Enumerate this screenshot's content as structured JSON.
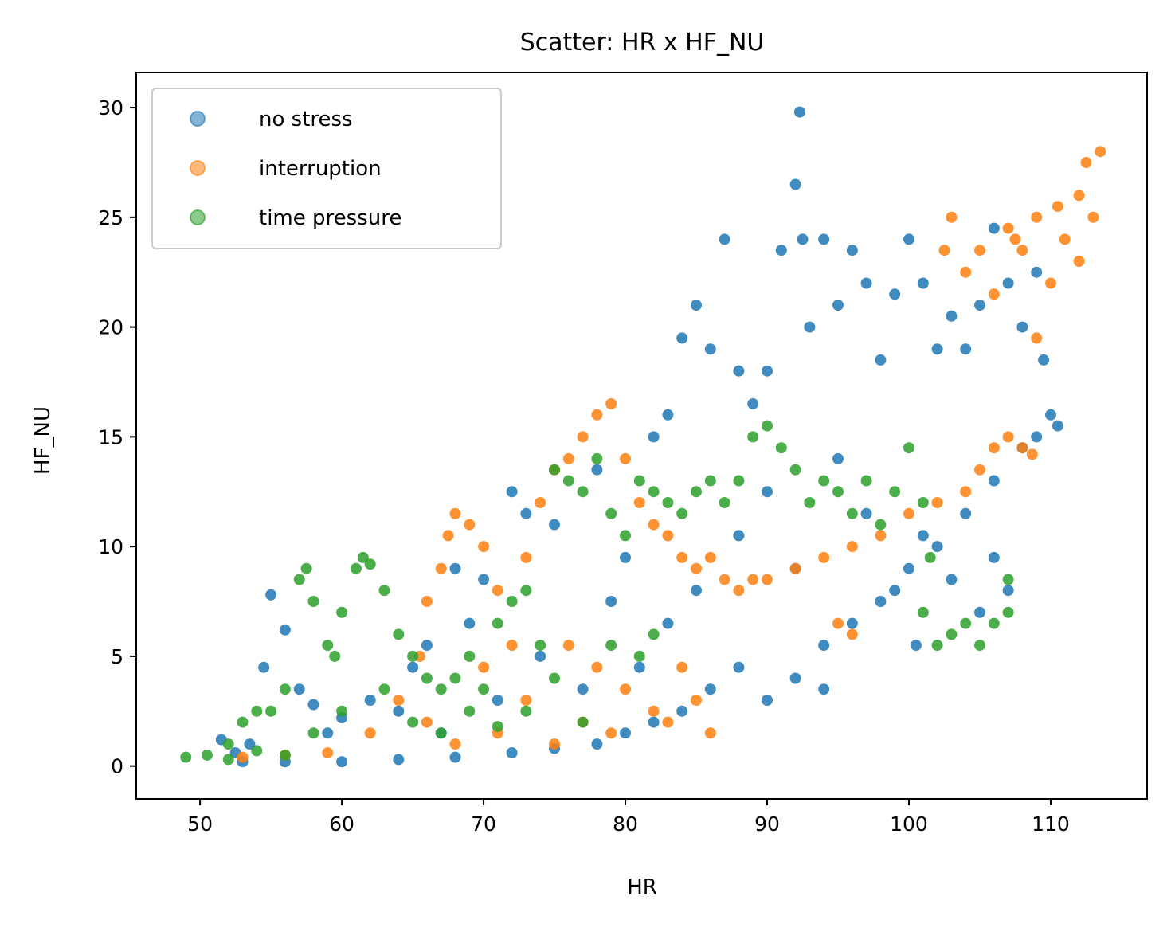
{
  "chart_data": {
    "type": "scatter",
    "title": "Scatter: HR x HF_NU",
    "xlabel": "HR",
    "ylabel": "HF_NU",
    "xlim": [
      45.5,
      116.8
    ],
    "ylim": [
      -1.5,
      31.6
    ],
    "xticks": [
      50,
      60,
      70,
      80,
      90,
      100,
      110
    ],
    "yticks": [
      0,
      5,
      10,
      15,
      20,
      25,
      30
    ],
    "grid": false,
    "legend_position": "top-left",
    "colors": {
      "no stress": "#1f77b4",
      "interruption": "#ff7f0e",
      "time pressure": "#2ca02c"
    },
    "series": [
      {
        "name": "no stress",
        "color": "#1f77b4",
        "points": [
          [
            51.5,
            1.2
          ],
          [
            52.5,
            0.6
          ],
          [
            53.5,
            1.0
          ],
          [
            54.5,
            4.5
          ],
          [
            55.0,
            7.8
          ],
          [
            56.0,
            6.2
          ],
          [
            57.0,
            3.5
          ],
          [
            58.0,
            2.8
          ],
          [
            59.0,
            1.5
          ],
          [
            60.0,
            2.2
          ],
          [
            62.0,
            3.0
          ],
          [
            64.0,
            2.5
          ],
          [
            66.0,
            5.5
          ],
          [
            68.0,
            9.0
          ],
          [
            70.0,
            8.5
          ],
          [
            72.0,
            12.5
          ],
          [
            73.0,
            11.5
          ],
          [
            75.0,
            11.0
          ],
          [
            78.0,
            13.5
          ],
          [
            80.0,
            9.5
          ],
          [
            82.0,
            15.0
          ],
          [
            83.0,
            16.0
          ],
          [
            84.0,
            19.5
          ],
          [
            85.0,
            21.0
          ],
          [
            86.0,
            19.0
          ],
          [
            87.0,
            24.0
          ],
          [
            88.0,
            18.0
          ],
          [
            89.0,
            16.5
          ],
          [
            90.0,
            18.0
          ],
          [
            91.0,
            23.5
          ],
          [
            92.0,
            26.5
          ],
          [
            92.3,
            29.8
          ],
          [
            92.5,
            24.0
          ],
          [
            93.0,
            20.0
          ],
          [
            94.0,
            24.0
          ],
          [
            95.0,
            21.0
          ],
          [
            96.0,
            23.5
          ],
          [
            97.0,
            22.0
          ],
          [
            98.0,
            18.5
          ],
          [
            99.0,
            21.5
          ],
          [
            100.0,
            24.0
          ],
          [
            101.0,
            22.0
          ],
          [
            102.0,
            19.0
          ],
          [
            103.0,
            20.5
          ],
          [
            104.0,
            19.0
          ],
          [
            105.0,
            21.0
          ],
          [
            106.0,
            24.5
          ],
          [
            107.0,
            22.0
          ],
          [
            108.0,
            20.0
          ],
          [
            109.0,
            22.5
          ],
          [
            109.5,
            18.5
          ],
          [
            110.0,
            16.0
          ],
          [
            110.5,
            15.5
          ],
          [
            109.0,
            15.0
          ],
          [
            108.0,
            14.5
          ],
          [
            106.0,
            13.0
          ],
          [
            104.0,
            11.5
          ],
          [
            102.0,
            10.0
          ],
          [
            100.0,
            9.0
          ],
          [
            98.0,
            7.5
          ],
          [
            96.0,
            6.5
          ],
          [
            94.0,
            5.5
          ],
          [
            92.0,
            4.0
          ],
          [
            90.0,
            3.0
          ],
          [
            88.0,
            4.5
          ],
          [
            86.0,
            3.5
          ],
          [
            84.0,
            2.5
          ],
          [
            82.0,
            2.0
          ],
          [
            80.0,
            1.5
          ],
          [
            78.0,
            1.0
          ],
          [
            75.0,
            0.8
          ],
          [
            72.0,
            0.6
          ],
          [
            68.0,
            0.4
          ],
          [
            64.0,
            0.3
          ],
          [
            60.0,
            0.2
          ],
          [
            56.0,
            0.2
          ],
          [
            53.0,
            0.2
          ],
          [
            95.0,
            14.0
          ],
          [
            97.0,
            11.5
          ],
          [
            99.0,
            8.0
          ],
          [
            100.5,
            5.5
          ],
          [
            101.0,
            10.5
          ],
          [
            103.0,
            8.5
          ],
          [
            105.0,
            7.0
          ],
          [
            106.0,
            9.5
          ],
          [
            107.0,
            8.0
          ],
          [
            88.0,
            10.5
          ],
          [
            90.0,
            12.5
          ],
          [
            92.0,
            9.0
          ],
          [
            94.0,
            3.5
          ],
          [
            85.0,
            8.0
          ],
          [
            83.0,
            6.5
          ],
          [
            81.0,
            4.5
          ],
          [
            79.0,
            7.5
          ],
          [
            77.0,
            3.5
          ],
          [
            74.0,
            5.0
          ],
          [
            71.0,
            3.0
          ],
          [
            69.0,
            6.5
          ],
          [
            67.0,
            1.5
          ],
          [
            65.0,
            4.5
          ]
        ]
      },
      {
        "name": "interruption",
        "color": "#ff7f0e",
        "points": [
          [
            53.0,
            0.4
          ],
          [
            56.0,
            0.5
          ],
          [
            59.0,
            0.6
          ],
          [
            62.0,
            1.5
          ],
          [
            64.0,
            3.0
          ],
          [
            65.5,
            5.0
          ],
          [
            66.0,
            7.5
          ],
          [
            67.0,
            9.0
          ],
          [
            67.5,
            10.5
          ],
          [
            68.0,
            11.5
          ],
          [
            69.0,
            11.0
          ],
          [
            70.0,
            10.0
          ],
          [
            71.0,
            8.0
          ],
          [
            72.0,
            5.5
          ],
          [
            73.0,
            9.5
          ],
          [
            74.0,
            12.0
          ],
          [
            75.0,
            13.5
          ],
          [
            76.0,
            14.0
          ],
          [
            77.0,
            15.0
          ],
          [
            78.0,
            16.0
          ],
          [
            79.0,
            16.5
          ],
          [
            80.0,
            14.0
          ],
          [
            81.0,
            12.0
          ],
          [
            82.0,
            11.0
          ],
          [
            83.0,
            10.5
          ],
          [
            84.0,
            9.5
          ],
          [
            85.0,
            9.0
          ],
          [
            86.0,
            9.5
          ],
          [
            87.0,
            8.5
          ],
          [
            88.0,
            8.0
          ],
          [
            89.0,
            8.5
          ],
          [
            90.0,
            8.5
          ],
          [
            92.0,
            9.0
          ],
          [
            94.0,
            9.5
          ],
          [
            96.0,
            10.0
          ],
          [
            98.0,
            10.5
          ],
          [
            100.0,
            11.5
          ],
          [
            102.0,
            12.0
          ],
          [
            104.0,
            12.5
          ],
          [
            105.0,
            13.5
          ],
          [
            106.0,
            14.5
          ],
          [
            107.0,
            15.0
          ],
          [
            108.0,
            14.5
          ],
          [
            108.7,
            14.2
          ],
          [
            95.0,
            6.5
          ],
          [
            96.0,
            6.0
          ],
          [
            102.5,
            23.5
          ],
          [
            103.0,
            25.0
          ],
          [
            104.0,
            22.5
          ],
          [
            105.0,
            23.5
          ],
          [
            106.0,
            21.5
          ],
          [
            107.0,
            24.5
          ],
          [
            108.0,
            23.5
          ],
          [
            109.0,
            19.5
          ],
          [
            110.0,
            22.0
          ],
          [
            111.0,
            24.0
          ],
          [
            112.0,
            23.0
          ],
          [
            112.5,
            27.5
          ],
          [
            113.0,
            25.0
          ],
          [
            113.5,
            28.0
          ],
          [
            112.0,
            26.0
          ],
          [
            110.5,
            25.5
          ],
          [
            109.0,
            25.0
          ],
          [
            107.5,
            24.0
          ],
          [
            76.0,
            5.5
          ],
          [
            78.0,
            4.5
          ],
          [
            80.0,
            3.5
          ],
          [
            82.0,
            2.5
          ],
          [
            84.0,
            4.5
          ],
          [
            85.0,
            3.0
          ],
          [
            86.0,
            1.5
          ],
          [
            83.0,
            2.0
          ],
          [
            79.0,
            1.5
          ],
          [
            75.0,
            1.0
          ],
          [
            71.0,
            1.5
          ],
          [
            68.0,
            1.0
          ],
          [
            66.0,
            2.0
          ],
          [
            70.0,
            4.5
          ],
          [
            73.0,
            3.0
          ],
          [
            77.0,
            2.0
          ]
        ]
      },
      {
        "name": "time pressure",
        "color": "#2ca02c",
        "points": [
          [
            49.0,
            0.4
          ],
          [
            50.5,
            0.5
          ],
          [
            52.0,
            1.0
          ],
          [
            53.0,
            2.0
          ],
          [
            54.0,
            2.5
          ],
          [
            55.0,
            2.5
          ],
          [
            56.0,
            3.5
          ],
          [
            57.0,
            8.5
          ],
          [
            57.5,
            9.0
          ],
          [
            58.0,
            7.5
          ],
          [
            59.0,
            5.5
          ],
          [
            59.5,
            5.0
          ],
          [
            60.0,
            7.0
          ],
          [
            61.0,
            9.0
          ],
          [
            61.5,
            9.5
          ],
          [
            62.0,
            9.2
          ],
          [
            63.0,
            8.0
          ],
          [
            64.0,
            6.0
          ],
          [
            65.0,
            5.0
          ],
          [
            66.0,
            4.0
          ],
          [
            67.0,
            3.5
          ],
          [
            68.0,
            4.0
          ],
          [
            69.0,
            5.0
          ],
          [
            70.0,
            3.5
          ],
          [
            71.0,
            6.5
          ],
          [
            72.0,
            7.5
          ],
          [
            73.0,
            8.0
          ],
          [
            74.0,
            5.5
          ],
          [
            75.0,
            13.5
          ],
          [
            76.0,
            13.0
          ],
          [
            77.0,
            12.5
          ],
          [
            78.0,
            14.0
          ],
          [
            79.0,
            11.5
          ],
          [
            80.0,
            10.5
          ],
          [
            81.0,
            13.0
          ],
          [
            82.0,
            12.5
          ],
          [
            83.0,
            12.0
          ],
          [
            84.0,
            11.5
          ],
          [
            85.0,
            12.5
          ],
          [
            86.0,
            13.0
          ],
          [
            87.0,
            12.0
          ],
          [
            88.0,
            13.0
          ],
          [
            89.0,
            15.0
          ],
          [
            90.0,
            15.5
          ],
          [
            91.0,
            14.5
          ],
          [
            92.0,
            13.5
          ],
          [
            93.0,
            12.0
          ],
          [
            94.0,
            13.0
          ],
          [
            95.0,
            12.5
          ],
          [
            96.0,
            11.5
          ],
          [
            97.0,
            13.0
          ],
          [
            98.0,
            11.0
          ],
          [
            99.0,
            12.5
          ],
          [
            100.0,
            14.5
          ],
          [
            101.0,
            12.0
          ],
          [
            101.5,
            9.5
          ],
          [
            101.0,
            7.0
          ],
          [
            102.0,
            5.5
          ],
          [
            103.0,
            6.0
          ],
          [
            104.0,
            6.5
          ],
          [
            105.0,
            5.5
          ],
          [
            106.0,
            6.5
          ],
          [
            107.0,
            7.0
          ],
          [
            107.0,
            8.5
          ],
          [
            63.0,
            3.5
          ],
          [
            65.0,
            2.0
          ],
          [
            67.0,
            1.5
          ],
          [
            69.0,
            2.5
          ],
          [
            71.0,
            1.8
          ],
          [
            73.0,
            2.5
          ],
          [
            75.0,
            4.0
          ],
          [
            77.0,
            2.0
          ],
          [
            79.0,
            5.5
          ],
          [
            81.0,
            5.0
          ],
          [
            82.0,
            6.0
          ],
          [
            60.0,
            2.5
          ],
          [
            58.0,
            1.5
          ],
          [
            56.0,
            0.5
          ],
          [
            54.0,
            0.7
          ],
          [
            52.0,
            0.3
          ]
        ]
      }
    ]
  }
}
